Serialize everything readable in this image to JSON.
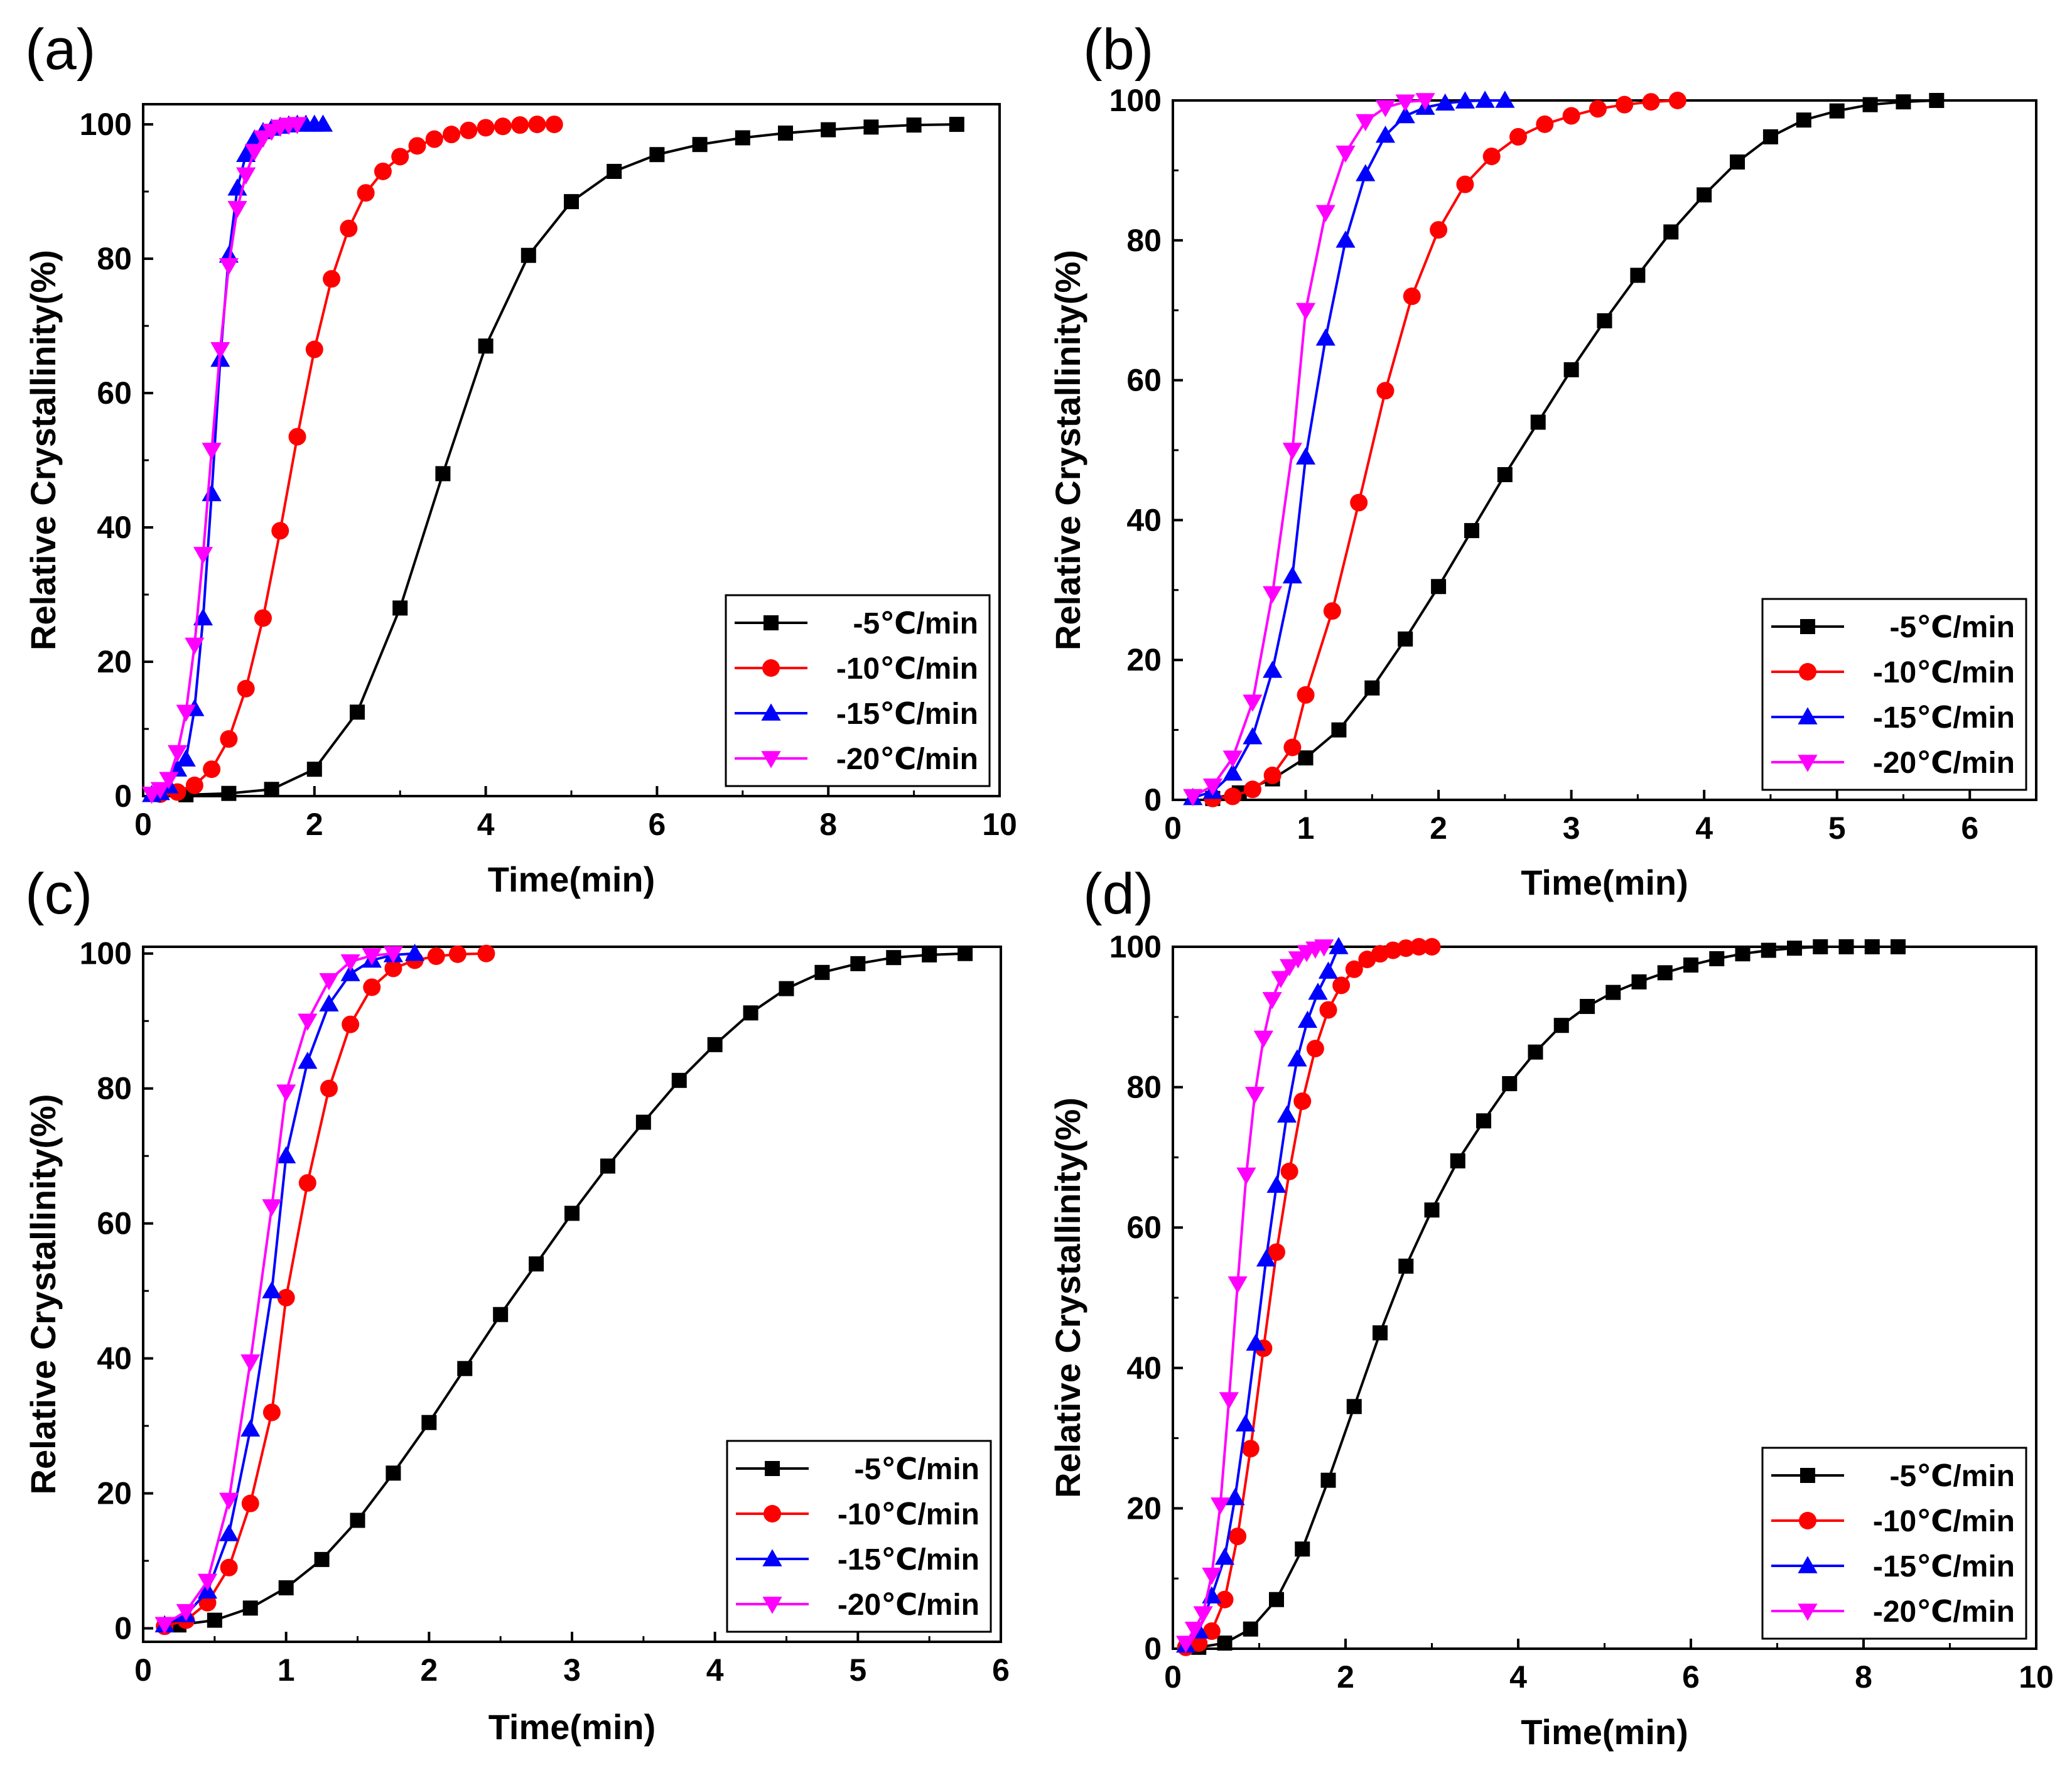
{
  "figure": {
    "panel_letters": [
      "(a)",
      "(b)",
      "(c)",
      "(d)"
    ]
  },
  "chart_data": [
    {
      "type": "line",
      "panel": "(a)",
      "title": "",
      "xlabel": "Time(min)",
      "ylabel": "Relative Crystallinity(%)",
      "xlim": [
        0,
        10
      ],
      "ylim": [
        0,
        103
      ],
      "xticks": [
        0,
        2,
        4,
        6,
        8,
        10
      ],
      "yticks": [
        0,
        20,
        40,
        60,
        80,
        100
      ],
      "legend_position": "bottom-right",
      "series": [
        {
          "name": "-5℃/min",
          "color": "#000000",
          "marker": "square",
          "x": [
            0.5,
            1.0,
            1.5,
            2.0,
            2.5,
            3.0,
            3.5,
            4.0,
            4.5,
            5.0,
            5.5,
            6.0,
            6.5,
            7.0,
            7.5,
            8.0,
            8.5,
            9.0,
            9.5
          ],
          "y": [
            0.2,
            0.4,
            1.0,
            4.0,
            12.5,
            28,
            48,
            67,
            80.5,
            88.5,
            93,
            95.5,
            97,
            98,
            98.7,
            99.2,
            99.6,
            99.9,
            100
          ]
        },
        {
          "name": "-10℃/min",
          "color": "#ff0000",
          "marker": "circle",
          "x": [
            0.2,
            0.4,
            0.6,
            0.8,
            1.0,
            1.2,
            1.4,
            1.6,
            1.8,
            2.0,
            2.2,
            2.4,
            2.6,
            2.8,
            3.0,
            3.2,
            3.4,
            3.6,
            3.8,
            4.0,
            4.2,
            4.4,
            4.6,
            4.8
          ],
          "y": [
            0.3,
            0.6,
            1.6,
            4,
            8.5,
            16,
            26.5,
            39.5,
            53.5,
            66.5,
            77,
            84.5,
            89.8,
            93,
            95.2,
            96.8,
            97.8,
            98.5,
            99.1,
            99.5,
            99.7,
            99.9,
            100,
            100
          ]
        },
        {
          "name": "-15℃/min",
          "color": "#0000ff",
          "marker": "triangle-up",
          "x": [
            0.1,
            0.2,
            0.3,
            0.4,
            0.5,
            0.6,
            0.7,
            0.8,
            0.9,
            1.0,
            1.1,
            1.2,
            1.3,
            1.4,
            1.5,
            1.6,
            1.7,
            1.8,
            1.9,
            2.0,
            2.1
          ],
          "y": [
            0.2,
            0.5,
            1.5,
            4,
            5.5,
            13,
            26.5,
            45,
            65,
            80.5,
            90.5,
            95.5,
            97.8,
            98.9,
            99.4,
            99.7,
            99.9,
            100,
            100,
            100,
            100
          ]
        },
        {
          "name": "-20℃/min",
          "color": "#ff00ff",
          "marker": "triangle-down",
          "x": [
            0.1,
            0.2,
            0.3,
            0.4,
            0.5,
            0.6,
            0.7,
            0.8,
            0.9,
            1.0,
            1.1,
            1.2,
            1.3,
            1.4,
            1.5,
            1.6,
            1.7,
            1.8
          ],
          "y": [
            0.3,
            1,
            2.5,
            6.5,
            12.5,
            22.5,
            36,
            51.5,
            66.5,
            79,
            87.5,
            92.5,
            96,
            98,
            99,
            99.6,
            99.9,
            100
          ]
        }
      ]
    },
    {
      "type": "line",
      "panel": "(b)",
      "title": "",
      "xlabel": "Time(min)",
      "ylabel": "Relative Crystallinity(%)",
      "xlim": [
        0,
        6.5
      ],
      "ylim": [
        0,
        100
      ],
      "xticks": [
        0,
        1,
        2,
        3,
        4,
        5,
        6
      ],
      "yticks": [
        0,
        20,
        40,
        60,
        80,
        100
      ],
      "legend_position": "bottom-right",
      "series": [
        {
          "name": "-5℃/min",
          "color": "#000000",
          "marker": "square",
          "x": [
            0.3,
            0.5,
            0.75,
            1.0,
            1.25,
            1.5,
            1.75,
            2.0,
            2.25,
            2.5,
            2.75,
            3.0,
            3.25,
            3.5,
            3.75,
            4.0,
            4.25,
            4.5,
            4.75,
            5.0,
            5.25,
            5.5,
            5.75
          ],
          "y": [
            0.2,
            1,
            3,
            6,
            10,
            16,
            23,
            30.5,
            38.5,
            46.5,
            54,
            61.5,
            68.5,
            75,
            81.2,
            86.5,
            91.2,
            94.8,
            97.2,
            98.5,
            99.4,
            99.8,
            100
          ]
        },
        {
          "name": "-10℃/min",
          "color": "#ff0000",
          "marker": "circle",
          "x": [
            0.3,
            0.45,
            0.6,
            0.75,
            0.9,
            1.0,
            1.2,
            1.4,
            1.6,
            1.8,
            2.0,
            2.2,
            2.4,
            2.6,
            2.8,
            3.0,
            3.2,
            3.4,
            3.6,
            3.8
          ],
          "y": [
            0.2,
            0.5,
            1.5,
            3.5,
            7.5,
            15,
            27,
            42.5,
            58.5,
            72,
            81.5,
            88,
            92,
            94.8,
            96.6,
            97.8,
            98.8,
            99.4,
            99.8,
            100
          ]
        },
        {
          "name": "-15℃/min",
          "color": "#0000ff",
          "marker": "triangle-up",
          "x": [
            0.15,
            0.3,
            0.45,
            0.6,
            0.75,
            0.9,
            1.0,
            1.15,
            1.3,
            1.45,
            1.6,
            1.75,
            1.9,
            2.05,
            2.2,
            2.35,
            2.5
          ],
          "y": [
            0.3,
            1.2,
            3.8,
            9,
            18.5,
            32,
            49,
            66,
            80,
            89.5,
            95,
            97.8,
            99,
            99.6,
            99.9,
            100,
            100
          ]
        },
        {
          "name": "-20℃/min",
          "color": "#ff00ff",
          "marker": "triangle-down",
          "x": [
            0.15,
            0.3,
            0.45,
            0.6,
            0.75,
            0.9,
            1.0,
            1.15,
            1.3,
            1.45,
            1.6,
            1.75,
            1.9
          ],
          "y": [
            0.5,
            2,
            6,
            14,
            29.5,
            50,
            70,
            84,
            92.5,
            97,
            99,
            99.8,
            100
          ]
        }
      ]
    },
    {
      "type": "line",
      "panel": "(c)",
      "title": "",
      "xlabel": "Time(min)",
      "ylabel": "Relative Crystallinity(%)",
      "xlim": [
        0,
        6
      ],
      "ylim": [
        -2,
        101
      ],
      "xticks": [
        0,
        1,
        2,
        3,
        4,
        5,
        6
      ],
      "yticks": [
        0,
        20,
        40,
        60,
        80,
        100
      ],
      "legend_position": "bottom-right",
      "series": [
        {
          "name": "-5℃/min",
          "color": "#000000",
          "marker": "square",
          "x": [
            0.25,
            0.5,
            0.75,
            1.0,
            1.25,
            1.5,
            1.75,
            2.0,
            2.25,
            2.5,
            2.75,
            3.0,
            3.25,
            3.5,
            3.75,
            4.0,
            4.25,
            4.5,
            4.75,
            5.0,
            5.25,
            5.5,
            5.75
          ],
          "y": [
            0.5,
            1.2,
            3,
            6,
            10.2,
            16,
            23,
            30.5,
            38.5,
            46.5,
            54,
            61.5,
            68.5,
            75,
            81.2,
            86.5,
            91.2,
            94.8,
            97.2,
            98.5,
            99.4,
            99.8,
            100
          ]
        },
        {
          "name": "-10℃/min",
          "color": "#ff0000",
          "marker": "circle",
          "x": [
            0.15,
            0.3,
            0.45,
            0.6,
            0.75,
            0.9,
            1.0,
            1.15,
            1.3,
            1.45,
            1.6,
            1.75,
            1.9,
            2.05,
            2.2,
            2.4
          ],
          "y": [
            0.3,
            1.2,
            3.8,
            9,
            18.5,
            32,
            49,
            66,
            80,
            89.5,
            95,
            97.8,
            99,
            99.6,
            99.9,
            100
          ]
        },
        {
          "name": "-15℃/min",
          "color": "#0000ff",
          "marker": "triangle-up",
          "x": [
            0.15,
            0.3,
            0.45,
            0.6,
            0.75,
            0.9,
            1.0,
            1.15,
            1.3,
            1.45,
            1.6,
            1.75,
            1.9
          ],
          "y": [
            0.5,
            2,
            5.5,
            14,
            29.5,
            50,
            70,
            84,
            92.5,
            97,
            99,
            99.8,
            100
          ]
        },
        {
          "name": "-20℃/min",
          "color": "#ff00ff",
          "marker": "triangle-down",
          "x": [
            0.15,
            0.3,
            0.45,
            0.6,
            0.75,
            0.9,
            1.0,
            1.15,
            1.3,
            1.45,
            1.6,
            1.75
          ],
          "y": [
            0.6,
            2.5,
            7,
            19,
            39.5,
            62.5,
            79.5,
            90,
            96,
            98.8,
            99.7,
            100
          ]
        }
      ]
    },
    {
      "type": "line",
      "panel": "(d)",
      "title": "",
      "xlabel": "Time(min)",
      "ylabel": "Relative Crystallinity(%)",
      "xlim": [
        0,
        10
      ],
      "ylim": [
        0,
        100
      ],
      "xticks": [
        0,
        2,
        4,
        6,
        8,
        10
      ],
      "yticks": [
        0,
        20,
        40,
        60,
        80,
        100
      ],
      "legend_position": "bottom-right",
      "series": [
        {
          "name": "-5℃/min",
          "color": "#000000",
          "marker": "square",
          "x": [
            0.3,
            0.6,
            0.9,
            1.2,
            1.5,
            1.8,
            2.1,
            2.4,
            2.7,
            3.0,
            3.3,
            3.6,
            3.9,
            4.2,
            4.5,
            4.8,
            5.1,
            5.4,
            5.7,
            6.0,
            6.3,
            6.6,
            6.9,
            7.2,
            7.5,
            7.8,
            8.1,
            8.4
          ],
          "y": [
            0.2,
            0.8,
            2.8,
            7,
            14.2,
            24,
            34.5,
            45,
            54.5,
            62.5,
            69.5,
            75.2,
            80.5,
            85,
            88.8,
            91.5,
            93.5,
            95,
            96.3,
            97.4,
            98.3,
            99,
            99.5,
            99.8,
            100,
            100,
            100,
            100
          ]
        },
        {
          "name": "-10℃/min",
          "color": "#ff0000",
          "marker": "circle",
          "x": [
            0.15,
            0.3,
            0.45,
            0.6,
            0.75,
            0.9,
            1.05,
            1.2,
            1.35,
            1.5,
            1.65,
            1.8,
            1.95,
            2.1,
            2.25,
            2.4,
            2.55,
            2.7,
            2.85,
            3.0
          ],
          "y": [
            0.2,
            0.8,
            2.5,
            7,
            16,
            28.5,
            42.8,
            56.5,
            68,
            78,
            85.5,
            91,
            94.5,
            96.8,
            98.2,
            99,
            99.5,
            99.8,
            100,
            100
          ]
        },
        {
          "name": "-15℃/min",
          "color": "#0000ff",
          "marker": "triangle-up",
          "x": [
            0.15,
            0.3,
            0.45,
            0.6,
            0.72,
            0.84,
            0.96,
            1.08,
            1.2,
            1.32,
            1.44,
            1.56,
            1.68,
            1.8,
            1.92
          ],
          "y": [
            0.5,
            2.5,
            7.5,
            13,
            21.5,
            32,
            43.5,
            55.5,
            66,
            76,
            84,
            89.5,
            93.5,
            96.5,
            100
          ]
        },
        {
          "name": "-20℃/min",
          "color": "#ff00ff",
          "marker": "triangle-down",
          "x": [
            0.15,
            0.25,
            0.35,
            0.45,
            0.55,
            0.65,
            0.75,
            0.85,
            0.95,
            1.05,
            1.15,
            1.25,
            1.35,
            1.45,
            1.55,
            1.65,
            1.75
          ],
          "y": [
            0.8,
            2.8,
            5,
            10.5,
            20.5,
            35.5,
            52,
            67.5,
            79,
            87,
            92.5,
            95.5,
            97.2,
            98.3,
            99.2,
            99.7,
            100
          ]
        }
      ]
    }
  ]
}
